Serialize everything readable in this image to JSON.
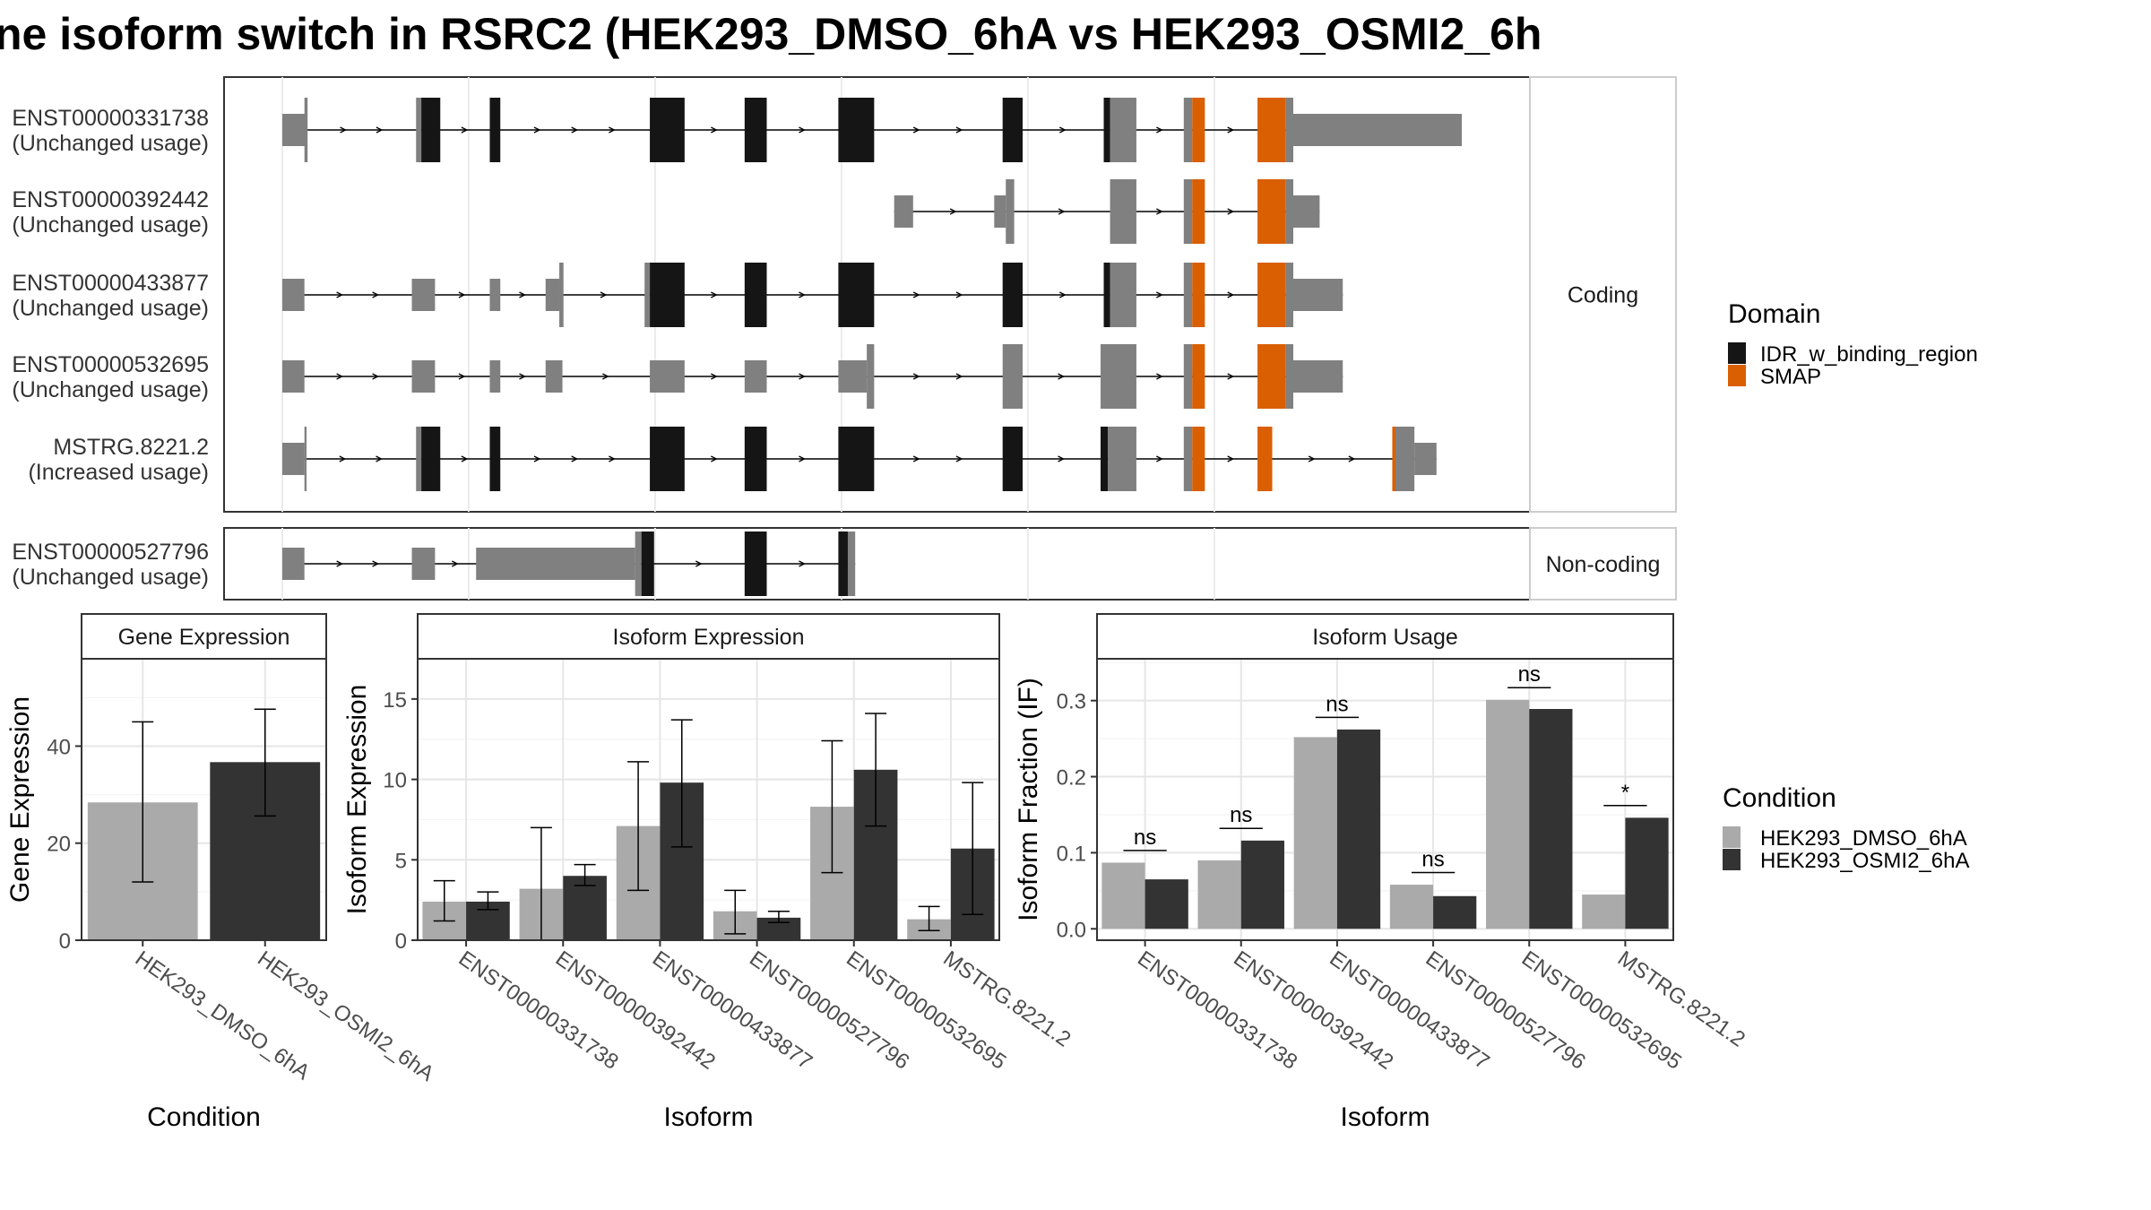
{
  "title": "ne isoform switch in RSRC2 (HEK293_DMSO_6hA vs HEK293_OSMI2_6h",
  "colors": {
    "exon": "#808080",
    "idr": "#151515",
    "smap": "#D95F02",
    "dmso": "#AAAAAA",
    "osmi": "#333333"
  },
  "legend_domain": {
    "title": "Domain",
    "items": [
      {
        "label": "IDR_w_binding_region",
        "color": "#151515"
      },
      {
        "label": "SMAP",
        "color": "#D95F02"
      }
    ]
  },
  "legend_condition": {
    "title": "Condition",
    "items": [
      {
        "label": "HEK293_DMSO_6hA",
        "color": "#AAAAAA"
      },
      {
        "label": "HEK293_OSMI2_6hA",
        "color": "#333333"
      }
    ]
  },
  "chart_data": [
    {
      "type": "gene-structure",
      "facets": [
        "Coding",
        "Non-coding"
      ],
      "xlim": [
        0,
        1000
      ],
      "transcripts": [
        {
          "id": "ENST00000331738",
          "usage": "(Unchanged usage)",
          "facet": "Coding",
          "segments": [
            {
              "s": 0,
              "e": 23,
              "t": "u"
            },
            {
              "s": 21,
              "e": 24,
              "t": "c"
            },
            {
              "s": 127,
              "e": 132,
              "t": "c"
            },
            {
              "s": 132,
              "e": 150,
              "t": "i"
            },
            {
              "s": 197,
              "e": 207,
              "t": "i"
            },
            {
              "s": 349,
              "e": 382,
              "t": "i"
            },
            {
              "s": 439,
              "e": 460,
              "t": "i"
            },
            {
              "s": 528,
              "e": 562,
              "t": "i"
            },
            {
              "s": 684,
              "e": 703,
              "t": "i"
            },
            {
              "s": 780,
              "e": 786,
              "t": "i"
            },
            {
              "s": 786,
              "e": 811,
              "t": "c"
            },
            {
              "s": 856,
              "e": 864,
              "t": "c"
            },
            {
              "s": 864,
              "e": 876,
              "t": "s"
            },
            {
              "s": 926,
              "e": 953,
              "t": "s"
            },
            {
              "s": 953,
              "e": 960,
              "t": "c"
            },
            {
              "s": 960,
              "e": 1120,
              "t": "u"
            }
          ]
        },
        {
          "id": "ENST00000392442",
          "usage": "(Unchanged usage)",
          "facet": "Coding",
          "segments": [
            {
              "s": 581,
              "e": 599,
              "t": "u"
            },
            {
              "s": 676,
              "e": 687,
              "t": "u"
            },
            {
              "s": 687,
              "e": 695,
              "t": "c"
            },
            {
              "s": 786,
              "e": 811,
              "t": "c"
            },
            {
              "s": 856,
              "e": 864,
              "t": "c"
            },
            {
              "s": 864,
              "e": 876,
              "t": "s"
            },
            {
              "s": 926,
              "e": 953,
              "t": "s"
            },
            {
              "s": 953,
              "e": 960,
              "t": "c"
            },
            {
              "s": 960,
              "e": 985,
              "t": "u"
            }
          ]
        },
        {
          "id": "ENST00000433877",
          "usage": "(Unchanged usage)",
          "facet": "Coding",
          "segments": [
            {
              "s": 0,
              "e": 21,
              "t": "u"
            },
            {
              "s": 123,
              "e": 145,
              "t": "u"
            },
            {
              "s": 197,
              "e": 207,
              "t": "u"
            },
            {
              "s": 250,
              "e": 263,
              "t": "u"
            },
            {
              "s": 263,
              "e": 267,
              "t": "c"
            },
            {
              "s": 344,
              "e": 349,
              "t": "c"
            },
            {
              "s": 349,
              "e": 382,
              "t": "i"
            },
            {
              "s": 439,
              "e": 460,
              "t": "i"
            },
            {
              "s": 528,
              "e": 562,
              "t": "i"
            },
            {
              "s": 684,
              "e": 703,
              "t": "i"
            },
            {
              "s": 780,
              "e": 786,
              "t": "i"
            },
            {
              "s": 786,
              "e": 811,
              "t": "c"
            },
            {
              "s": 856,
              "e": 864,
              "t": "c"
            },
            {
              "s": 864,
              "e": 876,
              "t": "s"
            },
            {
              "s": 926,
              "e": 953,
              "t": "s"
            },
            {
              "s": 953,
              "e": 960,
              "t": "c"
            },
            {
              "s": 960,
              "e": 1007,
              "t": "u"
            }
          ]
        },
        {
          "id": "ENST00000532695",
          "usage": "(Unchanged usage)",
          "facet": "Coding",
          "segments": [
            {
              "s": 0,
              "e": 21,
              "t": "u"
            },
            {
              "s": 123,
              "e": 145,
              "t": "u"
            },
            {
              "s": 197,
              "e": 207,
              "t": "u"
            },
            {
              "s": 250,
              "e": 266,
              "t": "u"
            },
            {
              "s": 349,
              "e": 382,
              "t": "u"
            },
            {
              "s": 439,
              "e": 460,
              "t": "u"
            },
            {
              "s": 528,
              "e": 555,
              "t": "u"
            },
            {
              "s": 555,
              "e": 562,
              "t": "c"
            },
            {
              "s": 684,
              "e": 703,
              "t": "c"
            },
            {
              "s": 777,
              "e": 811,
              "t": "c"
            },
            {
              "s": 856,
              "e": 864,
              "t": "c"
            },
            {
              "s": 864,
              "e": 876,
              "t": "s"
            },
            {
              "s": 926,
              "e": 953,
              "t": "s"
            },
            {
              "s": 953,
              "e": 960,
              "t": "c"
            },
            {
              "s": 960,
              "e": 1007,
              "t": "u"
            }
          ]
        },
        {
          "id": "MSTRG.8221.2",
          "usage": "(Increased usage)",
          "facet": "Coding",
          "segments": [
            {
              "s": 0,
              "e": 21,
              "t": "u"
            },
            {
              "s": 21,
              "e": 23,
              "t": "c"
            },
            {
              "s": 127,
              "e": 132,
              "t": "c"
            },
            {
              "s": 132,
              "e": 150,
              "t": "i"
            },
            {
              "s": 197,
              "e": 207,
              "t": "i"
            },
            {
              "s": 349,
              "e": 382,
              "t": "i"
            },
            {
              "s": 439,
              "e": 460,
              "t": "i"
            },
            {
              "s": 528,
              "e": 562,
              "t": "i"
            },
            {
              "s": 684,
              "e": 703,
              "t": "i"
            },
            {
              "s": 777,
              "e": 784,
              "t": "i"
            },
            {
              "s": 784,
              "e": 811,
              "t": "c"
            },
            {
              "s": 856,
              "e": 864,
              "t": "c"
            },
            {
              "s": 864,
              "e": 876,
              "t": "s"
            },
            {
              "s": 926,
              "e": 940,
              "t": "s"
            },
            {
              "s": 1054,
              "e": 1057,
              "t": "s"
            },
            {
              "s": 1057,
              "e": 1075,
              "t": "c"
            },
            {
              "s": 1075,
              "e": 1096,
              "t": "u"
            }
          ]
        },
        {
          "id": "ENST00000527796",
          "usage": "(Unchanged usage)",
          "facet": "Non-coding",
          "segments": [
            {
              "s": 0,
              "e": 21,
              "t": "u"
            },
            {
              "s": 123,
              "e": 145,
              "t": "u"
            },
            {
              "s": 184,
              "e": 335,
              "t": "u"
            },
            {
              "s": 335,
              "e": 341,
              "t": "c"
            },
            {
              "s": 341,
              "e": 353,
              "t": "i"
            },
            {
              "s": 439,
              "e": 460,
              "t": "i"
            },
            {
              "s": 528,
              "e": 537,
              "t": "i"
            },
            {
              "s": 537,
              "e": 544,
              "t": "c"
            }
          ]
        }
      ]
    },
    {
      "type": "bar",
      "title": "Gene Expression",
      "xlabel": "Condition",
      "ylabel": "Gene Expression",
      "ylim": [
        0,
        58
      ],
      "yticks": [
        0,
        20,
        40
      ],
      "categories": [
        "HEK293_DMSO_6hA",
        "HEK293_OSMI2_6hA"
      ],
      "series": [
        {
          "values": [
            28.4,
            36.7
          ],
          "err_low": [
            12.0,
            25.6
          ],
          "err_high": [
            45.0,
            47.6
          ]
        }
      ]
    },
    {
      "type": "bar",
      "title": "Isoform Expression",
      "xlabel": "Isoform",
      "ylabel": "Isoform Expression",
      "ylim": [
        0,
        17.5
      ],
      "yticks": [
        0,
        5,
        10,
        15
      ],
      "categories": [
        "ENST00000331738",
        "ENST00000392442",
        "ENST00000433877",
        "ENST00000527796",
        "ENST00000532695",
        "MSTRG.8221.2"
      ],
      "series": [
        {
          "name": "HEK293_DMSO_6hA",
          "values": [
            2.4,
            3.2,
            7.1,
            1.8,
            8.3,
            1.3
          ],
          "err_low": [
            1.2,
            0.0,
            3.1,
            0.4,
            4.2,
            0.6
          ],
          "err_high": [
            3.7,
            7.0,
            11.1,
            3.1,
            12.4,
            2.1
          ]
        },
        {
          "name": "HEK293_OSMI2_6hA",
          "values": [
            2.4,
            4.0,
            9.8,
            1.4,
            10.6,
            5.7
          ],
          "err_low": [
            1.9,
            3.4,
            5.8,
            1.1,
            7.1,
            1.6
          ],
          "err_high": [
            3.0,
            4.7,
            13.7,
            1.8,
            14.1,
            9.8
          ]
        }
      ]
    },
    {
      "type": "bar",
      "title": "Isoform Usage",
      "xlabel": "Isoform",
      "ylabel": "Isoform Fraction (IF)",
      "ylim": [
        -0.015,
        0.355
      ],
      "yticks": [
        0.0,
        0.1,
        0.2,
        0.3
      ],
      "ytick_labels": [
        "0.0",
        "0.1",
        "0.2",
        "0.3"
      ],
      "categories": [
        "ENST00000331738",
        "ENST00000392442",
        "ENST00000433877",
        "ENST00000527796",
        "ENST00000532695",
        "MSTRG.8221.2"
      ],
      "series": [
        {
          "name": "HEK293_DMSO_6hA",
          "values": [
            0.087,
            0.09,
            0.252,
            0.058,
            0.301,
            0.045
          ]
        },
        {
          "name": "HEK293_OSMI2_6hA",
          "values": [
            0.065,
            0.116,
            0.262,
            0.043,
            0.289,
            0.146
          ]
        }
      ],
      "significance": [
        {
          "label": "ns",
          "y": 0.103
        },
        {
          "label": "ns",
          "y": 0.132
        },
        {
          "label": "ns",
          "y": 0.278
        },
        {
          "label": "ns",
          "y": 0.074
        },
        {
          "label": "ns",
          "y": 0.317
        },
        {
          "label": "*",
          "y": 0.162
        }
      ]
    }
  ]
}
